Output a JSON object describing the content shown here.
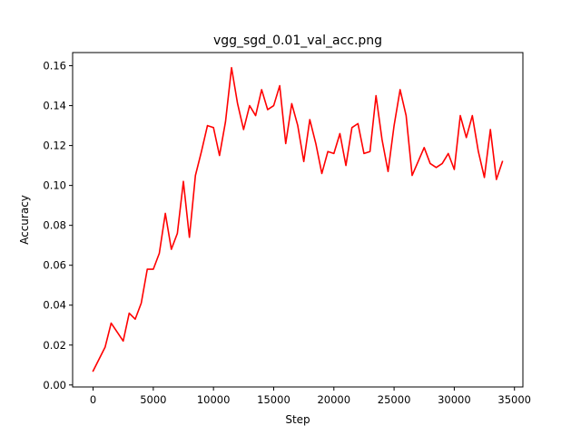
{
  "chart_data": {
    "type": "line",
    "title": "vgg_sgd_0.01_val_acc.png",
    "xlabel": "Step",
    "ylabel": "Accuracy",
    "xlim": [
      -1700,
      35700
    ],
    "ylim": [
      -0.001,
      0.1666
    ],
    "x_ticks": [
      0,
      5000,
      10000,
      15000,
      20000,
      25000,
      30000,
      35000
    ],
    "x_tick_labels": [
      "0",
      "5000",
      "10000",
      "15000",
      "20000",
      "25000",
      "30000",
      "35000"
    ],
    "y_ticks": [
      0.0,
      0.02,
      0.04,
      0.06,
      0.08,
      0.1,
      0.12,
      0.14,
      0.16
    ],
    "y_tick_labels": [
      "0.00",
      "0.02",
      "0.04",
      "0.06",
      "0.08",
      "0.10",
      "0.12",
      "0.14",
      "0.16"
    ],
    "grid": false,
    "legend": "none",
    "series": [
      {
        "color": "#ff0000",
        "x": [
          0,
          1000,
          1500,
          2500,
          3000,
          3500,
          4000,
          4500,
          5000,
          5500,
          6000,
          6500,
          7000,
          7500,
          8000,
          8500,
          9000,
          9500,
          10000,
          10500,
          11000,
          11500,
          12000,
          12500,
          13000,
          13500,
          14000,
          14500,
          15000,
          15500,
          16000,
          16500,
          17000,
          17500,
          18000,
          18500,
          19000,
          19500,
          20000,
          20500,
          21000,
          21500,
          22000,
          22500,
          23000,
          23500,
          24000,
          24500,
          25000,
          25500,
          26000,
          26500,
          27000,
          27500,
          28000,
          28500,
          29000,
          29500,
          30000,
          30500,
          31000,
          31500,
          32000,
          32500,
          33000,
          33500,
          34000
        ],
        "y": [
          0.007,
          0.019,
          0.031,
          0.022,
          0.036,
          0.033,
          0.041,
          0.058,
          0.058,
          0.066,
          0.086,
          0.068,
          0.076,
          0.102,
          0.074,
          0.105,
          0.117,
          0.13,
          0.129,
          0.115,
          0.132,
          0.159,
          0.141,
          0.128,
          0.14,
          0.135,
          0.148,
          0.138,
          0.14,
          0.15,
          0.121,
          0.141,
          0.13,
          0.112,
          0.133,
          0.121,
          0.106,
          0.117,
          0.116,
          0.126,
          0.11,
          0.129,
          0.131,
          0.116,
          0.117,
          0.145,
          0.123,
          0.107,
          0.13,
          0.148,
          0.135,
          0.105,
          0.112,
          0.119,
          0.111,
          0.109,
          0.111,
          0.116,
          0.108,
          0.135,
          0.124,
          0.135,
          0.117,
          0.104,
          0.128,
          0.103,
          0.112
        ]
      }
    ]
  }
}
